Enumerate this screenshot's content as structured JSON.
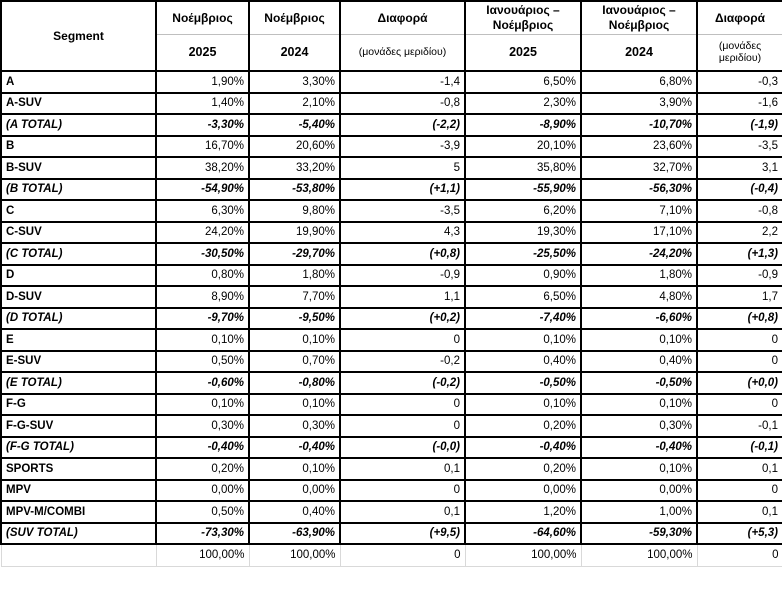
{
  "colors": {
    "background": "#ffffff",
    "text": "#000000",
    "table_border": "#000000",
    "header_separator": "#bfbfbf",
    "footer_gridline": "#d9d9d9"
  },
  "table": {
    "header": {
      "segment_label": "Segment",
      "columns": [
        {
          "title": "Νοέμβριος",
          "subtitle": "2025"
        },
        {
          "title": "Νοέμβριος",
          "subtitle": "2024"
        },
        {
          "title": "Διαφορά",
          "subtitle": "(μονάδες μεριδίου)"
        },
        {
          "title": "Ιανουάριος – Νοέμβριος",
          "subtitle": "2025"
        },
        {
          "title": "Ιανουάριος – Νοέμβριος",
          "subtitle": "2024"
        },
        {
          "title": "Διαφορά",
          "subtitle": "(μονάδες μεριδίου)"
        }
      ]
    },
    "rows": [
      {
        "label": "A",
        "total": false,
        "cells": [
          "1,90%",
          "3,30%",
          "-1,4",
          "6,50%",
          "6,80%",
          "-0,3"
        ]
      },
      {
        "label": "A-SUV",
        "total": false,
        "cells": [
          "1,40%",
          "2,10%",
          "-0,8",
          "2,30%",
          "3,90%",
          "-1,6"
        ]
      },
      {
        "label": "(A TOTAL)",
        "total": true,
        "cells": [
          "-3,30%",
          "-5,40%",
          "(-2,2)",
          "-8,90%",
          "-10,70%",
          "(-1,9)"
        ]
      },
      {
        "label": "B",
        "total": false,
        "cells": [
          "16,70%",
          "20,60%",
          "-3,9",
          "20,10%",
          "23,60%",
          "-3,5"
        ]
      },
      {
        "label": "B-SUV",
        "total": false,
        "cells": [
          "38,20%",
          "33,20%",
          "5",
          "35,80%",
          "32,70%",
          "3,1"
        ]
      },
      {
        "label": "(B TOTAL)",
        "total": true,
        "cells": [
          "-54,90%",
          "-53,80%",
          "(+1,1)",
          "-55,90%",
          "-56,30%",
          "(-0,4)"
        ]
      },
      {
        "label": "C",
        "total": false,
        "cells": [
          "6,30%",
          "9,80%",
          "-3,5",
          "6,20%",
          "7,10%",
          "-0,8"
        ]
      },
      {
        "label": "C-SUV",
        "total": false,
        "cells": [
          "24,20%",
          "19,90%",
          "4,3",
          "19,30%",
          "17,10%",
          "2,2"
        ]
      },
      {
        "label": "(C TOTAL)",
        "total": true,
        "cells": [
          "-30,50%",
          "-29,70%",
          "(+0,8)",
          "-25,50%",
          "-24,20%",
          "(+1,3)"
        ]
      },
      {
        "label": "D",
        "total": false,
        "cells": [
          "0,80%",
          "1,80%",
          "-0,9",
          "0,90%",
          "1,80%",
          "-0,9"
        ]
      },
      {
        "label": "D-SUV",
        "total": false,
        "cells": [
          "8,90%",
          "7,70%",
          "1,1",
          "6,50%",
          "4,80%",
          "1,7"
        ]
      },
      {
        "label": "(D TOTAL)",
        "total": true,
        "cells": [
          "-9,70%",
          "-9,50%",
          "(+0,2)",
          "-7,40%",
          "-6,60%",
          "(+0,8)"
        ]
      },
      {
        "label": "E",
        "total": false,
        "cells": [
          "0,10%",
          "0,10%",
          "0",
          "0,10%",
          "0,10%",
          "0"
        ]
      },
      {
        "label": "E-SUV",
        "total": false,
        "cells": [
          "0,50%",
          "0,70%",
          "-0,2",
          "0,40%",
          "0,40%",
          "0"
        ]
      },
      {
        "label": "(E TOTAL)",
        "total": true,
        "cells": [
          "-0,60%",
          "-0,80%",
          "(-0,2)",
          "-0,50%",
          "-0,50%",
          "(+0,0)"
        ]
      },
      {
        "label": "F-G",
        "total": false,
        "cells": [
          "0,10%",
          "0,10%",
          "0",
          "0,10%",
          "0,10%",
          "0"
        ]
      },
      {
        "label": "F-G-SUV",
        "total": false,
        "cells": [
          "0,30%",
          "0,30%",
          "0",
          "0,20%",
          "0,30%",
          "-0,1"
        ]
      },
      {
        "label": "(F-G TOTAL)",
        "total": true,
        "cells": [
          "-0,40%",
          "-0,40%",
          "(-0,0)",
          "-0,40%",
          "-0,40%",
          "(-0,1)"
        ]
      },
      {
        "label": "SPORTS",
        "total": false,
        "cells": [
          "0,20%",
          "0,10%",
          "0,1",
          "0,20%",
          "0,10%",
          "0,1"
        ]
      },
      {
        "label": "MPV",
        "total": false,
        "cells": [
          "0,00%",
          "0,00%",
          "0",
          "0,00%",
          "0,00%",
          "0"
        ]
      },
      {
        "label": "MPV-M/COMBI",
        "total": false,
        "cells": [
          "0,50%",
          "0,40%",
          "0,1",
          "1,20%",
          "1,00%",
          "0,1"
        ]
      },
      {
        "label": "(SUV TOTAL)",
        "total": true,
        "cells": [
          "-73,30%",
          "-63,90%",
          "(+9,5)",
          "-64,60%",
          "-59,30%",
          "(+5,3)"
        ]
      }
    ],
    "footer_cells": [
      "",
      "100,00%",
      "100,00%",
      "0",
      "100,00%",
      "100,00%",
      "0"
    ]
  }
}
